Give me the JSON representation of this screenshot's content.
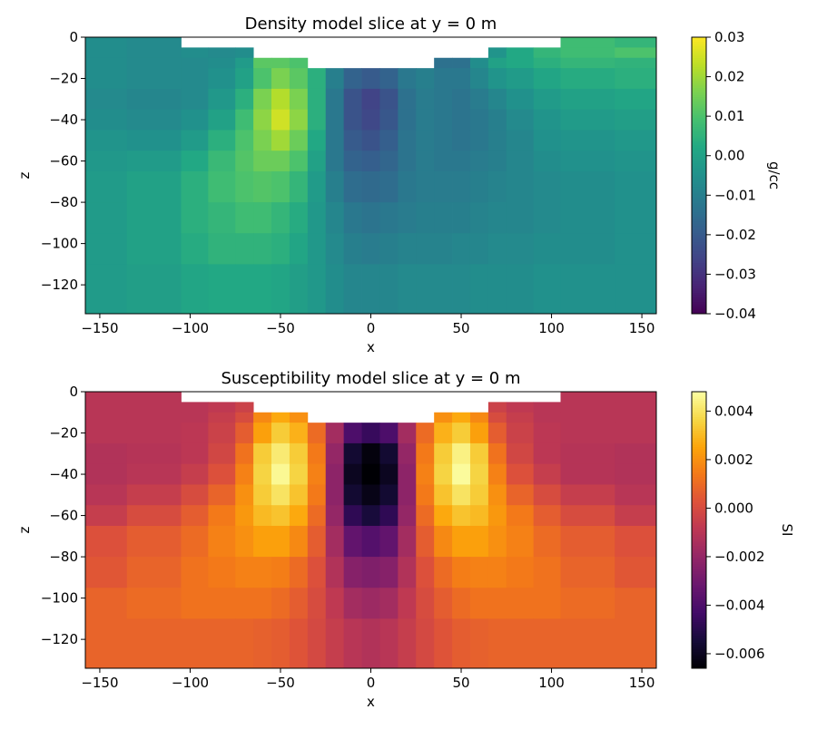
{
  "chart_data": [
    {
      "type": "heatmap",
      "title": "Density model slice at y = 0 m",
      "xlabel": "x",
      "ylabel": "z",
      "xlim": [
        -158,
        158
      ],
      "ylim": [
        -134,
        0
      ],
      "xticks": [
        -150,
        -100,
        -50,
        0,
        50,
        100,
        150
      ],
      "xtick_labels": [
        "−150",
        "−100",
        "−50",
        "0",
        "50",
        "100",
        "150"
      ],
      "yticks": [
        0,
        -20,
        -40,
        -60,
        -80,
        -100,
        -120
      ],
      "ytick_labels": [
        "0",
        "−20",
        "−40",
        "−60",
        "−80",
        "−100",
        "−120"
      ],
      "colormap": "viridis",
      "colorbar": {
        "label": "g/cc",
        "range": [
          -0.04,
          0.03
        ],
        "ticks": [
          0.03,
          0.02,
          0.01,
          0.0,
          -0.01,
          -0.02,
          -0.03,
          -0.04
        ],
        "tick_labels": [
          "0.03",
          "0.02",
          "0.01",
          "0.00",
          "−0.01",
          "−0.02",
          "−0.03",
          "−0.04"
        ]
      },
      "x_edges": [
        -158,
        -135,
        -105,
        -90,
        -75,
        -65,
        -55,
        -45,
        -35,
        -25,
        -15,
        -5,
        5,
        15,
        25,
        35,
        45,
        55,
        65,
        75,
        90,
        105,
        135,
        158
      ],
      "z_edges": [
        0,
        -5,
        -10,
        -15,
        -25,
        -35,
        -45,
        -55,
        -65,
        -80,
        -95,
        -110,
        -134
      ],
      "values": [
        [
          -0.006,
          -0.007,
          null,
          null,
          null,
          null,
          null,
          null,
          null,
          null,
          null,
          null,
          null,
          null,
          null,
          null,
          null,
          null,
          null,
          null,
          null,
          0.008,
          0.006
        ],
        [
          -0.006,
          -0.007,
          -0.006,
          -0.007,
          -0.006,
          null,
          null,
          null,
          null,
          null,
          null,
          null,
          null,
          null,
          null,
          null,
          null,
          null,
          -0.004,
          0.002,
          0.006,
          0.008,
          0.01
        ],
        [
          -0.006,
          -0.007,
          -0.007,
          -0.006,
          -0.002,
          0.012,
          0.012,
          0.01,
          null,
          null,
          null,
          null,
          null,
          null,
          null,
          -0.014,
          -0.014,
          -0.006,
          0.0,
          0.002,
          0.004,
          0.006,
          0.005
        ],
        [
          -0.006,
          -0.007,
          -0.007,
          -0.005,
          0.0,
          0.01,
          0.016,
          0.012,
          0.004,
          -0.01,
          -0.018,
          -0.02,
          -0.018,
          -0.012,
          -0.01,
          -0.012,
          -0.012,
          -0.008,
          -0.004,
          -0.002,
          0.001,
          0.003,
          0.004
        ],
        [
          -0.007,
          -0.008,
          -0.007,
          -0.003,
          0.004,
          0.016,
          0.022,
          0.016,
          0.004,
          -0.012,
          -0.022,
          -0.026,
          -0.022,
          -0.014,
          -0.011,
          -0.012,
          -0.013,
          -0.011,
          -0.008,
          -0.005,
          -0.002,
          0.0,
          0.001
        ],
        [
          -0.006,
          -0.007,
          -0.005,
          0.0,
          0.008,
          0.018,
          0.025,
          0.018,
          0.004,
          -0.012,
          -0.022,
          -0.025,
          -0.021,
          -0.014,
          -0.011,
          -0.012,
          -0.013,
          -0.012,
          -0.01,
          -0.007,
          -0.004,
          -0.002,
          -0.001
        ],
        [
          -0.004,
          -0.005,
          -0.002,
          0.004,
          0.01,
          0.016,
          0.02,
          0.014,
          0.002,
          -0.012,
          -0.02,
          -0.022,
          -0.019,
          -0.013,
          -0.011,
          -0.012,
          -0.013,
          -0.012,
          -0.01,
          -0.008,
          -0.005,
          -0.004,
          -0.003
        ],
        [
          -0.003,
          -0.002,
          0.002,
          0.007,
          0.011,
          0.014,
          0.014,
          0.01,
          0.0,
          -0.012,
          -0.018,
          -0.019,
          -0.017,
          -0.013,
          -0.011,
          -0.012,
          -0.012,
          -0.011,
          -0.01,
          -0.008,
          -0.006,
          -0.005,
          -0.004
        ],
        [
          -0.002,
          0.0,
          0.004,
          0.008,
          0.01,
          0.011,
          0.01,
          0.006,
          -0.002,
          -0.01,
          -0.015,
          -0.016,
          -0.015,
          -0.012,
          -0.011,
          -0.011,
          -0.011,
          -0.01,
          -0.009,
          -0.008,
          -0.007,
          -0.006,
          -0.005
        ],
        [
          -0.002,
          0.0,
          0.004,
          0.006,
          0.008,
          0.008,
          0.006,
          0.003,
          -0.003,
          -0.008,
          -0.012,
          -0.013,
          -0.012,
          -0.011,
          -0.01,
          -0.01,
          -0.01,
          -0.009,
          -0.008,
          -0.008,
          -0.007,
          -0.006,
          -0.005
        ],
        [
          -0.002,
          0.0,
          0.003,
          0.005,
          0.005,
          0.005,
          0.004,
          0.001,
          -0.003,
          -0.007,
          -0.01,
          -0.011,
          -0.01,
          -0.009,
          -0.009,
          -0.009,
          -0.008,
          -0.008,
          -0.007,
          -0.007,
          -0.006,
          -0.006,
          -0.005
        ],
        [
          -0.002,
          -0.001,
          0.001,
          0.002,
          0.002,
          0.002,
          0.001,
          -0.001,
          -0.003,
          -0.006,
          -0.008,
          -0.008,
          -0.008,
          -0.007,
          -0.007,
          -0.007,
          -0.007,
          -0.006,
          -0.006,
          -0.006,
          -0.005,
          -0.005,
          -0.005
        ]
      ]
    },
    {
      "type": "heatmap",
      "title": "Susceptibility model slice at y = 0 m",
      "xlabel": "x",
      "ylabel": "z",
      "xlim": [
        -158,
        158
      ],
      "ylim": [
        -134,
        0
      ],
      "xticks": [
        -150,
        -100,
        -50,
        0,
        50,
        100,
        150
      ],
      "xtick_labels": [
        "−150",
        "−100",
        "−50",
        "0",
        "50",
        "100",
        "150"
      ],
      "yticks": [
        0,
        -20,
        -40,
        -60,
        -80,
        -100,
        -120
      ],
      "ytick_labels": [
        "0",
        "−20",
        "−40",
        "−60",
        "−80",
        "−100",
        "−120"
      ],
      "colormap": "inferno",
      "colorbar": {
        "label": "SI",
        "range": [
          -0.0066,
          0.0048
        ],
        "ticks": [
          0.004,
          0.002,
          0.0,
          -0.002,
          -0.004,
          -0.006
        ],
        "tick_labels": [
          "0.004",
          "0.002",
          "0.000",
          "−0.002",
          "−0.004",
          "−0.006"
        ]
      },
      "x_edges": [
        -158,
        -135,
        -105,
        -90,
        -75,
        -65,
        -55,
        -45,
        -35,
        -25,
        -15,
        -5,
        5,
        15,
        25,
        35,
        45,
        55,
        65,
        75,
        90,
        105,
        135,
        158
      ],
      "z_edges": [
        0,
        -5,
        -10,
        -15,
        -25,
        -35,
        -45,
        -55,
        -65,
        -80,
        -95,
        -110,
        -134
      ],
      "values": [
        [
          -0.001,
          -0.001,
          null,
          null,
          null,
          null,
          null,
          null,
          null,
          null,
          null,
          null,
          null,
          null,
          null,
          null,
          null,
          null,
          null,
          null,
          null,
          -0.001,
          -0.001
        ],
        [
          -0.001,
          -0.001,
          -0.001,
          -0.0008,
          -0.0004,
          null,
          null,
          null,
          null,
          null,
          null,
          null,
          null,
          null,
          null,
          null,
          null,
          null,
          -0.0004,
          -0.0008,
          -0.001,
          -0.001,
          -0.001
        ],
        [
          -0.001,
          -0.001,
          -0.001,
          -0.0006,
          0.0,
          0.0018,
          0.0026,
          0.002,
          null,
          null,
          null,
          null,
          null,
          null,
          null,
          0.002,
          0.0026,
          0.0018,
          0.0,
          -0.0006,
          -0.001,
          -0.001,
          -0.001
        ],
        [
          -0.001,
          -0.001,
          -0.0009,
          -0.0004,
          0.0006,
          0.0024,
          0.0034,
          0.0028,
          0.001,
          -0.0016,
          -0.004,
          -0.0046,
          -0.004,
          -0.0016,
          0.001,
          0.0028,
          0.0034,
          0.0024,
          0.0006,
          -0.0004,
          -0.0009,
          -0.001,
          -0.001
        ],
        [
          -0.0012,
          -0.0011,
          -0.0009,
          -0.0002,
          0.0012,
          0.0034,
          0.0042,
          0.0034,
          0.0014,
          -0.002,
          -0.0056,
          -0.0064,
          -0.0056,
          -0.002,
          0.0014,
          0.0034,
          0.0044,
          0.0034,
          0.0012,
          -0.0002,
          -0.0009,
          -0.0011,
          -0.0012
        ],
        [
          -0.0012,
          -0.001,
          -0.0006,
          0.0002,
          0.0016,
          0.0036,
          0.0046,
          0.0036,
          0.0016,
          -0.0022,
          -0.006,
          -0.0066,
          -0.006,
          -0.0022,
          0.0016,
          0.0036,
          0.0047,
          0.0036,
          0.0016,
          0.0002,
          -0.0006,
          -0.0011,
          -0.0012
        ],
        [
          -0.001,
          -0.0006,
          0.0,
          0.0008,
          0.002,
          0.0034,
          0.004,
          0.0032,
          0.0014,
          -0.0022,
          -0.0056,
          -0.0062,
          -0.0056,
          -0.0022,
          0.0014,
          0.0032,
          0.004,
          0.0034,
          0.002,
          0.0008,
          0.0,
          -0.0006,
          -0.001
        ],
        [
          -0.0006,
          0.0,
          0.0006,
          0.0014,
          0.0022,
          0.003,
          0.0032,
          0.0026,
          0.001,
          -0.002,
          -0.0048,
          -0.0054,
          -0.0048,
          -0.002,
          0.001,
          0.0026,
          0.0032,
          0.003,
          0.0022,
          0.0014,
          0.0006,
          0.0,
          -0.0006
        ],
        [
          0.0002,
          0.0006,
          0.001,
          0.0016,
          0.002,
          0.0024,
          0.0024,
          0.0018,
          0.0006,
          -0.0016,
          -0.0034,
          -0.0038,
          -0.0034,
          -0.0016,
          0.0006,
          0.0018,
          0.0024,
          0.0024,
          0.002,
          0.0016,
          0.001,
          0.0006,
          0.0002
        ],
        [
          0.0004,
          0.0008,
          0.0012,
          0.0014,
          0.0016,
          0.0016,
          0.0015,
          0.001,
          0.0002,
          -0.0012,
          -0.0024,
          -0.0026,
          -0.0024,
          -0.0012,
          0.0002,
          0.001,
          0.0015,
          0.0016,
          0.0016,
          0.0014,
          0.0012,
          0.0008,
          0.0004
        ],
        [
          0.0008,
          0.001,
          0.0012,
          0.0012,
          0.0012,
          0.0012,
          0.001,
          0.0006,
          0.0,
          -0.0008,
          -0.0016,
          -0.0018,
          -0.0016,
          -0.0008,
          0.0,
          0.0006,
          0.001,
          0.0012,
          0.0012,
          0.0012,
          0.0012,
          0.001,
          0.0008
        ],
        [
          0.0008,
          0.0008,
          0.0008,
          0.0008,
          0.0008,
          0.0007,
          0.0006,
          0.0003,
          -0.0001,
          -0.0006,
          -0.001,
          -0.0012,
          -0.001,
          -0.0006,
          -0.0001,
          0.0003,
          0.0006,
          0.0007,
          0.0008,
          0.0008,
          0.0008,
          0.0008,
          0.0008
        ]
      ]
    }
  ]
}
